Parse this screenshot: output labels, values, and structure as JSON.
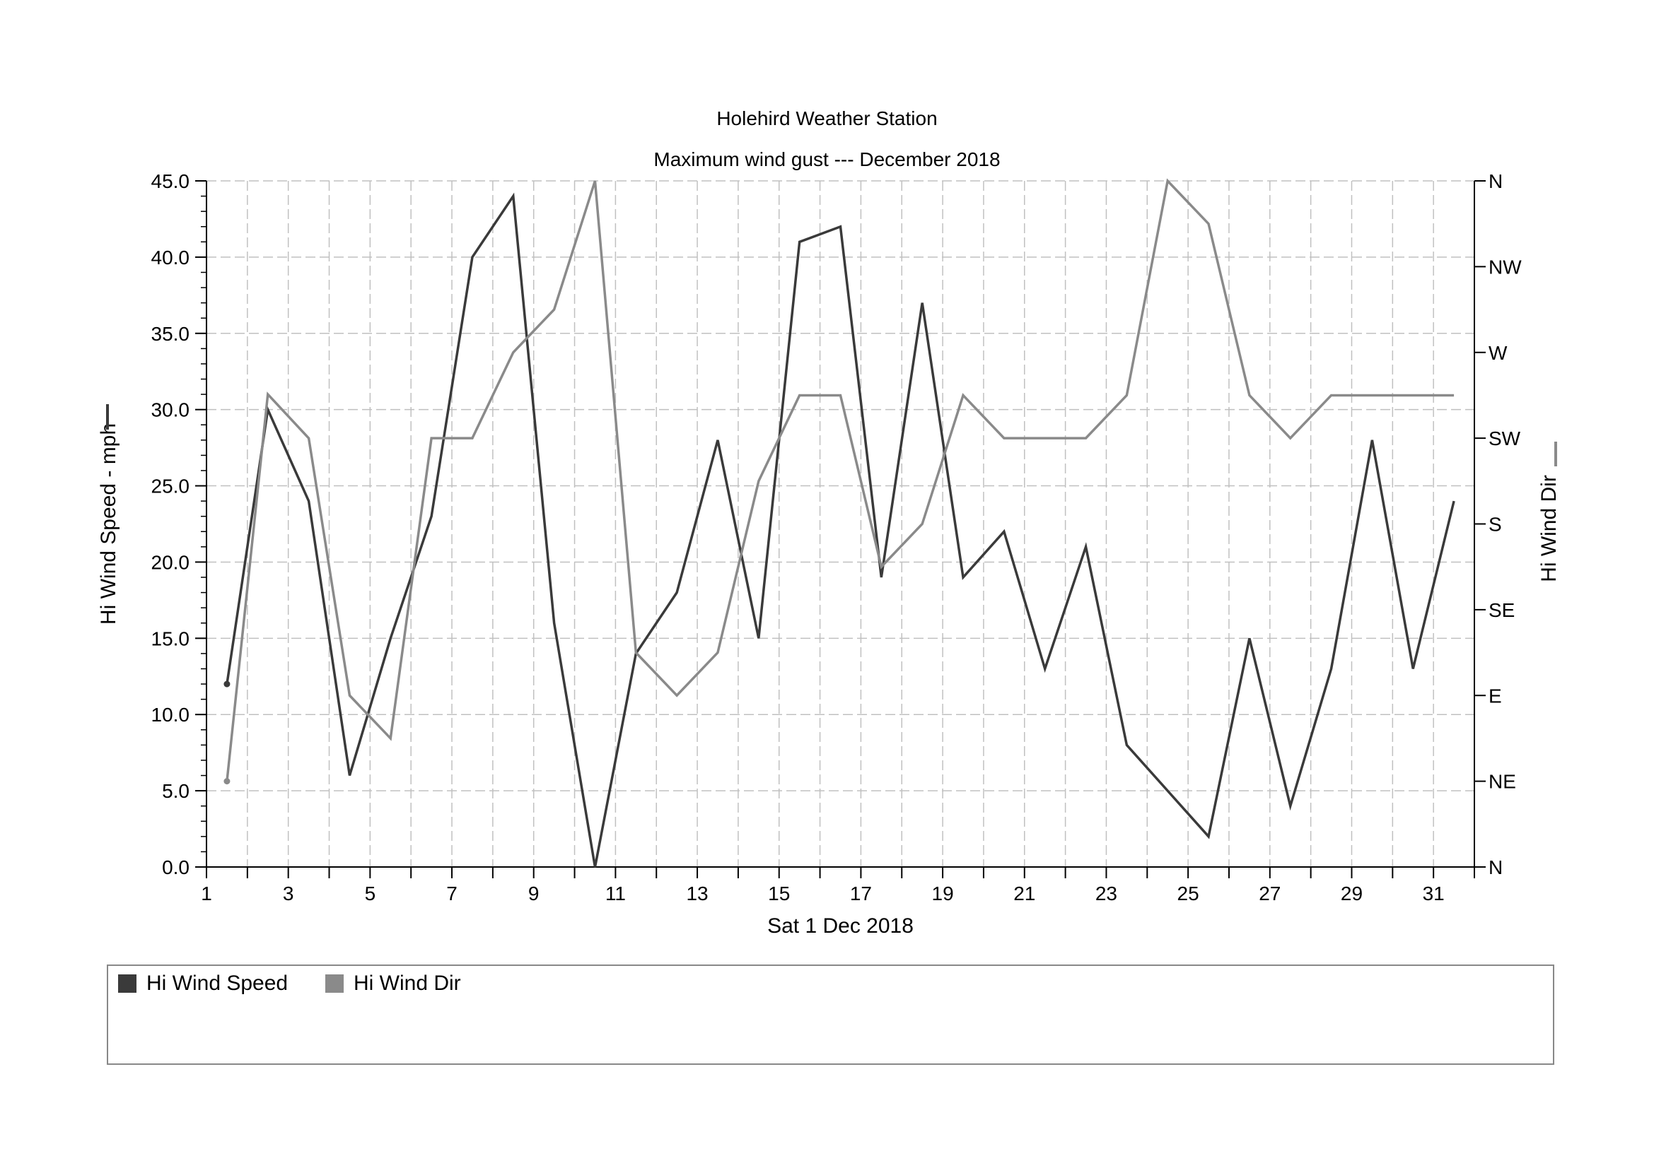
{
  "title": "Holehird Weather Station",
  "subtitle": "Maximum wind gust --- December 2018",
  "legend": [
    {
      "label": "Hi Wind Speed",
      "color": "#3a3a3a"
    },
    {
      "label": "Hi Wind Dir",
      "color": "#8a8a8a"
    }
  ],
  "chart_data": {
    "type": "line",
    "title": "Holehird Weather Station",
    "subtitle": "Maximum wind gust --- December 2018",
    "xlabel": "Sat 1 Dec 2018",
    "ylabel": "Hi Wind Speed - mph",
    "y2label": "Hi Wind Dir",
    "xlim": [
      1,
      32
    ],
    "ylim": [
      0,
      45
    ],
    "y2lim": [
      0,
      360
    ],
    "x_ticks": [
      "1",
      "3",
      "5",
      "7",
      "9",
      "11",
      "13",
      "15",
      "17",
      "19",
      "21",
      "23",
      "25",
      "27",
      "29",
      "31"
    ],
    "y_ticks": [
      "0.0",
      "5.0",
      "10.0",
      "15.0",
      "20.0",
      "25.0",
      "30.0",
      "35.0",
      "40.0",
      "45.0"
    ],
    "y2_ticks": [
      "N",
      "NE",
      "E",
      "SE",
      "S",
      "SW",
      "W",
      "NW",
      "N"
    ],
    "grid": true,
    "legend_position": "bottom",
    "series": [
      {
        "name": "Hi Wind Speed",
        "axis": "left",
        "color": "#3a3a3a",
        "x": [
          1.5,
          2.5,
          3.5,
          4.5,
          5.5,
          6.5,
          7.5,
          8.5,
          9.5,
          10.5,
          11.5,
          12.5,
          13.5,
          14.5,
          15.5,
          16.5,
          17.5,
          18.5,
          19.5,
          20.5,
          21.5,
          22.5,
          23.5,
          24.5,
          25.5,
          26.5,
          27.5,
          28.5,
          29.5,
          30.5,
          31.5
        ],
        "values": [
          12,
          30,
          24,
          6,
          15,
          23,
          40,
          44,
          16,
          0,
          14,
          18,
          28,
          15,
          41,
          42,
          19,
          37,
          19,
          22,
          13,
          21,
          8,
          5,
          2,
          15,
          4,
          13,
          28,
          13,
          24
        ]
      },
      {
        "name": "Hi Wind Dir",
        "axis": "right",
        "color": "#8a8a8a",
        "x": [
          1.5,
          2.5,
          3.5,
          4.5,
          5.5,
          6.5,
          7.5,
          8.5,
          9.5,
          10.5,
          11.5,
          12.5,
          13.5,
          14.5,
          15.5,
          16.5,
          17.5,
          18.5,
          19.5,
          20.5,
          21.5,
          22.5,
          23.5,
          24.5,
          25.5,
          26.5,
          27.5,
          28.5,
          29.5,
          30.5,
          31.5
        ],
        "values": [
          45,
          248,
          225,
          90,
          67.5,
          225,
          225,
          270,
          292.5,
          360,
          112.5,
          90,
          112.5,
          202.5,
          247.5,
          247.5,
          157.5,
          180,
          247.5,
          225,
          225,
          225,
          247.5,
          360,
          337.5,
          247.5,
          225,
          247.5,
          247.5,
          247.5,
          247.5
        ]
      }
    ]
  }
}
